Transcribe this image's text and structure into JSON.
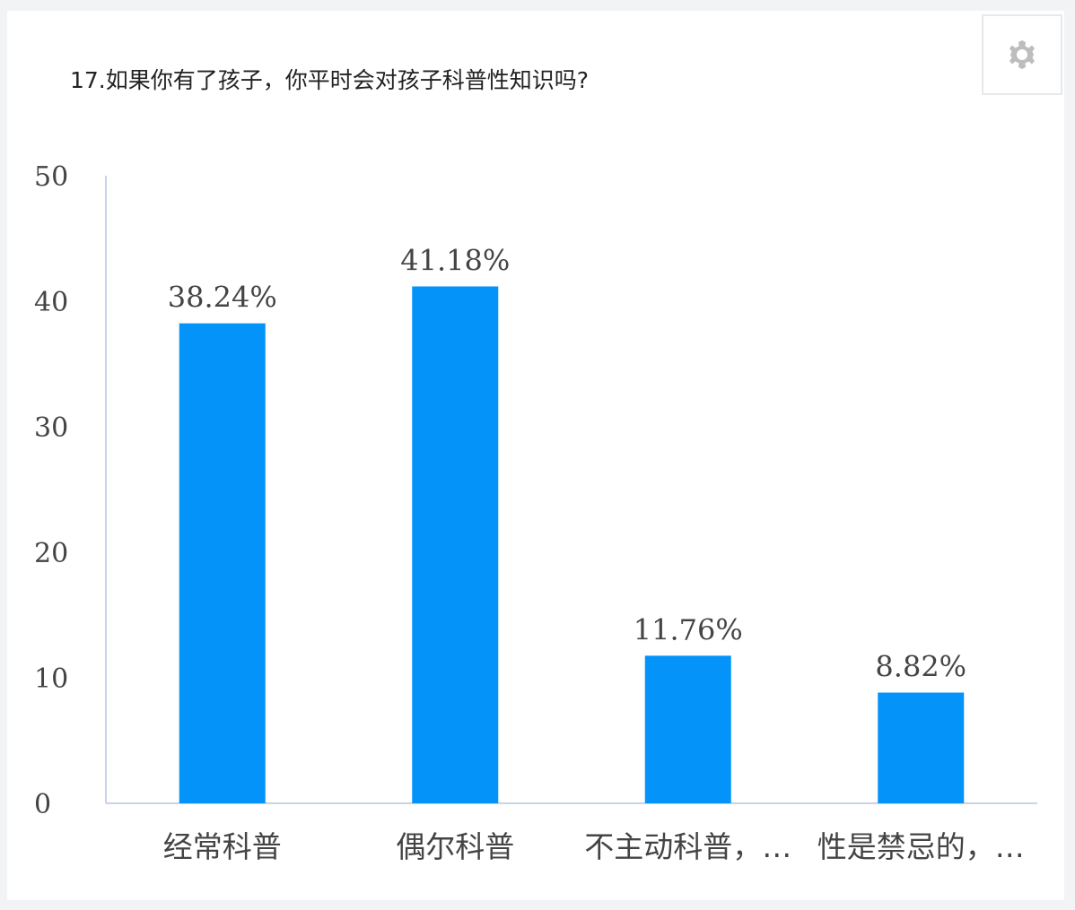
{
  "question": {
    "title": "17.如果你有了孩子，你平时会对孩子科普性知识吗?"
  },
  "settings": {
    "icon": "gear-icon"
  },
  "colors": {
    "bar": "#0393f9",
    "axis": "#c7d3e6",
    "text": "#444444"
  },
  "chart_data": {
    "type": "bar",
    "title": "17.如果你有了孩子，你平时会对孩子科普性知识吗?",
    "categories": [
      "经常科普",
      "偶尔科普",
      "不主动科普，…",
      "性是禁忌的，…"
    ],
    "values": [
      38.24,
      41.18,
      11.76,
      8.82
    ],
    "data_labels": [
      "38.24%",
      "41.18%",
      "11.76%",
      "8.82%"
    ],
    "ylim": [
      0,
      50
    ],
    "yticks": [
      0,
      10,
      20,
      30,
      40,
      50
    ],
    "xlabel": "",
    "ylabel": "",
    "grid": false,
    "legend": "none"
  }
}
